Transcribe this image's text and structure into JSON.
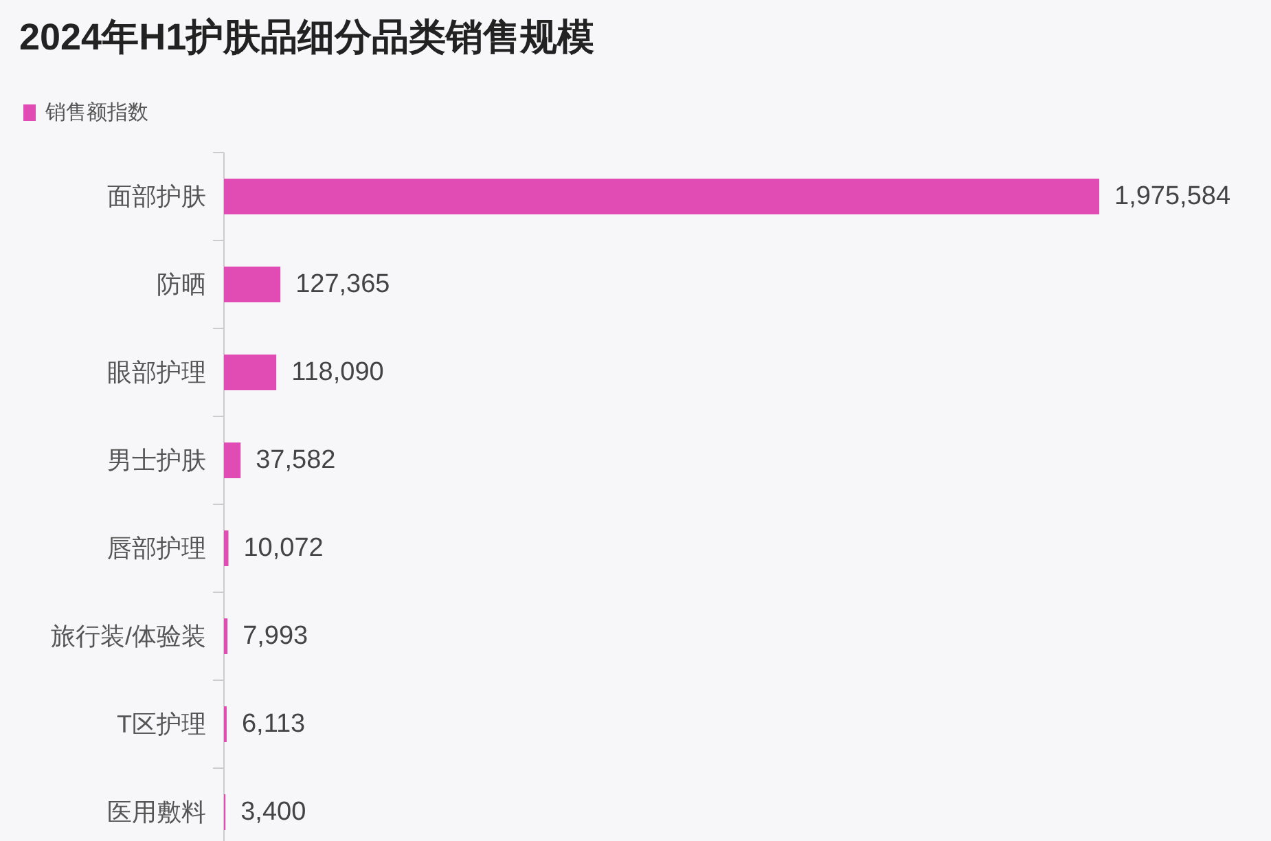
{
  "chart_data": {
    "type": "bar",
    "orientation": "horizontal",
    "title": "2024年H1护肤品细分品类销售规模",
    "categories": [
      "面部护肤",
      "防晒",
      "眼部护理",
      "男士护肤",
      "唇部护理",
      "旅行装/体验装",
      "T区护理",
      "医用敷料"
    ],
    "series": [
      {
        "name": "销售额指数",
        "color": "#e04cb4",
        "values": [
          1975584,
          127365,
          118090,
          37582,
          10072,
          7993,
          6113,
          3400
        ],
        "value_labels": [
          "1,975,584",
          "127,365",
          "118,090",
          "37,582",
          "10,072",
          "7,993",
          "6,113",
          "3,400"
        ]
      }
    ],
    "legend": "top left"
  }
}
